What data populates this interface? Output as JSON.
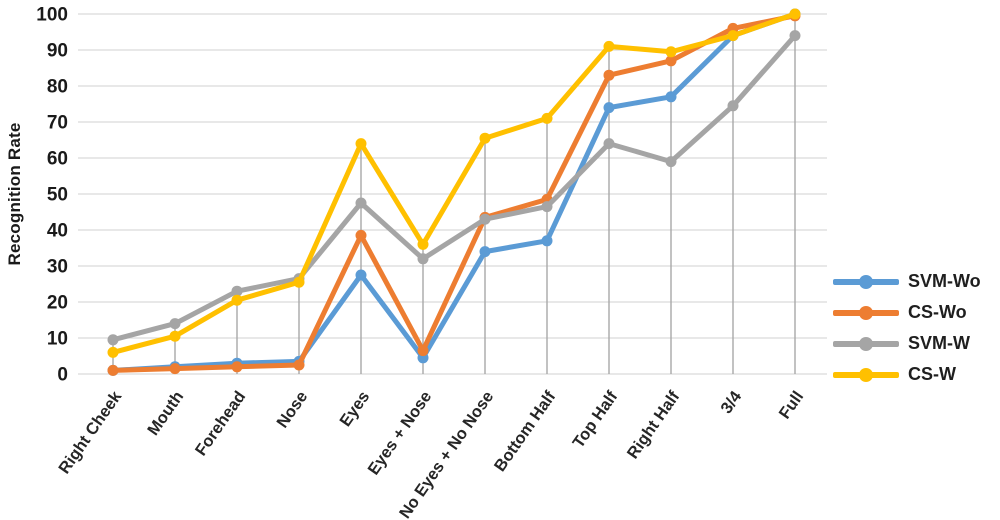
{
  "chart_data": {
    "type": "line",
    "title": "",
    "xlabel": "",
    "ylabel": "Recognition Rate",
    "ylim": [
      0,
      100
    ],
    "ytick_step": 10,
    "grid": "horizontal gridlines every 10 units; vertical drop lines at each category",
    "legend_position": "right",
    "marker": "circle",
    "categories": [
      "Right Cheek",
      "Mouth",
      "Forehead",
      "Nose",
      "Eyes",
      "Eyes + Nose",
      "No Eyes + No Nose",
      "Bottom Half",
      "Top Half",
      "Right Half",
      "3/4",
      "Full"
    ],
    "series": [
      {
        "name": "SVM-Wo",
        "color": "#5B9BD5",
        "values": [
          1,
          2,
          3,
          3.5,
          27.5,
          4.5,
          34,
          37,
          74,
          77,
          94,
          100
        ]
      },
      {
        "name": "CS-Wo",
        "color": "#ED7D31",
        "values": [
          1,
          1.5,
          2,
          2.5,
          38.5,
          6.5,
          43.5,
          48.5,
          83,
          87,
          96,
          99.5
        ]
      },
      {
        "name": "SVM-W",
        "color": "#A5A5A5",
        "values": [
          9.5,
          14,
          23,
          26.5,
          47.5,
          32,
          43,
          46.5,
          64,
          59,
          74.5,
          94
        ]
      },
      {
        "name": "CS-W",
        "color": "#FFC000",
        "values": [
          6,
          10.5,
          20.5,
          25.5,
          64,
          36,
          65.5,
          71,
          91,
          89.5,
          94,
          100
        ]
      }
    ],
    "ytick_labels": [
      "0",
      "10",
      "20",
      "30",
      "40",
      "50",
      "60",
      "70",
      "80",
      "90",
      "100"
    ]
  },
  "colors": {
    "gridline": "#d9d9d9",
    "dropline": "#a8a8a8",
    "tick_text": "#1a1a1a",
    "background": "#ffffff"
  }
}
